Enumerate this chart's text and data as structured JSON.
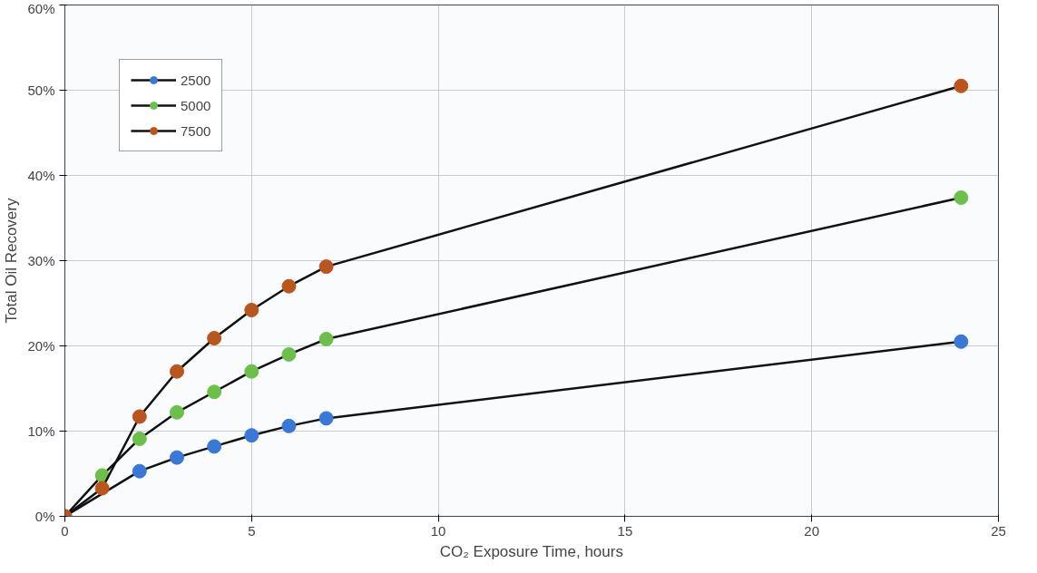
{
  "chart_data": {
    "type": "line",
    "xlabel": "CO₂ Exposure Time, hours",
    "ylabel": "Total Oil Recovery",
    "xlim": [
      0,
      25
    ],
    "xticks": [
      0,
      5,
      10,
      15,
      20,
      25
    ],
    "ylim": [
      0,
      60
    ],
    "yticks": [
      {
        "value": 0,
        "label": "0%"
      },
      {
        "value": 10,
        "label": "10%"
      },
      {
        "value": 20,
        "label": "20%"
      },
      {
        "value": 30,
        "label": "30%"
      },
      {
        "value": 40,
        "label": "40%"
      },
      {
        "value": 50,
        "label": "50%"
      },
      {
        "value": 60,
        "label": "60%"
      }
    ],
    "grid": true,
    "legend": "top left",
    "marker": "circle",
    "line_style": "solid",
    "series": [
      {
        "name": "2500",
        "color": "#3a78d8",
        "x": [
          0,
          2,
          3,
          4,
          5,
          6,
          7,
          24
        ],
        "values": [
          0,
          5.3,
          6.9,
          8.2,
          9.5,
          10.6,
          11.5,
          20.5
        ]
      },
      {
        "name": "5000",
        "color": "#6cc04a",
        "x": [
          0,
          1,
          2,
          3,
          4,
          5,
          6,
          7,
          24
        ],
        "values": [
          0,
          4.8,
          9.1,
          12.2,
          14.6,
          17.0,
          19.0,
          20.8,
          37.4
        ]
      },
      {
        "name": "7500",
        "color": "#b8561e",
        "x": [
          0,
          1,
          2,
          3,
          4,
          5,
          6,
          7,
          24
        ],
        "values": [
          0,
          3.3,
          11.7,
          17.0,
          20.9,
          24.2,
          27.0,
          29.3,
          50.5
        ]
      }
    ]
  }
}
